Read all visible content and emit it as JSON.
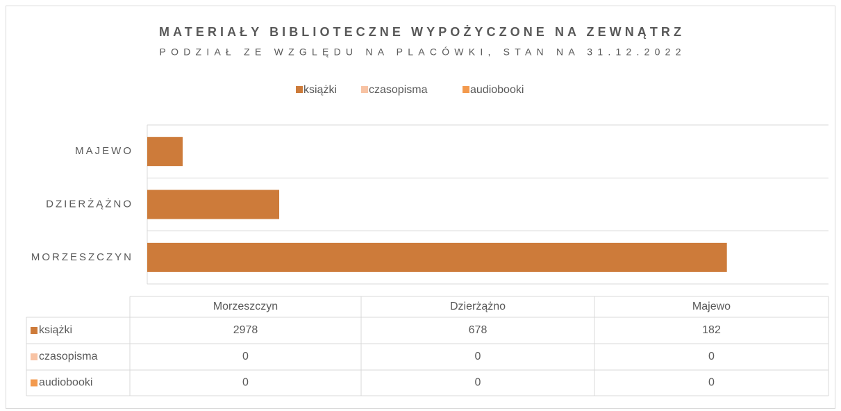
{
  "chart_data": {
    "type": "bar",
    "orientation": "horizontal",
    "stacked": true,
    "title": "MATERIAŁY BIBLIOTECZNE WYPOŻYCZONE NA ZEWNĄTRZ",
    "subtitle": "PODZIAŁ ZE WZGLĘDU NA PLACÓWKI, STAN NA 31.12.2022",
    "categories": [
      "Morzeszczyn",
      "Dzierżążno",
      "Majewo"
    ],
    "series": [
      {
        "name": "książki",
        "color": "#CD7B3A",
        "values": [
          2978,
          678,
          182
        ]
      },
      {
        "name": "czasopisma",
        "color": "#F8C3A4",
        "values": [
          0,
          0,
          0
        ]
      },
      {
        "name": "audiobooki",
        "color": "#F39A4E",
        "values": [
          0,
          0,
          0
        ]
      }
    ],
    "xlim": [
      0,
      3500
    ],
    "legend": "top",
    "data_table": true
  }
}
